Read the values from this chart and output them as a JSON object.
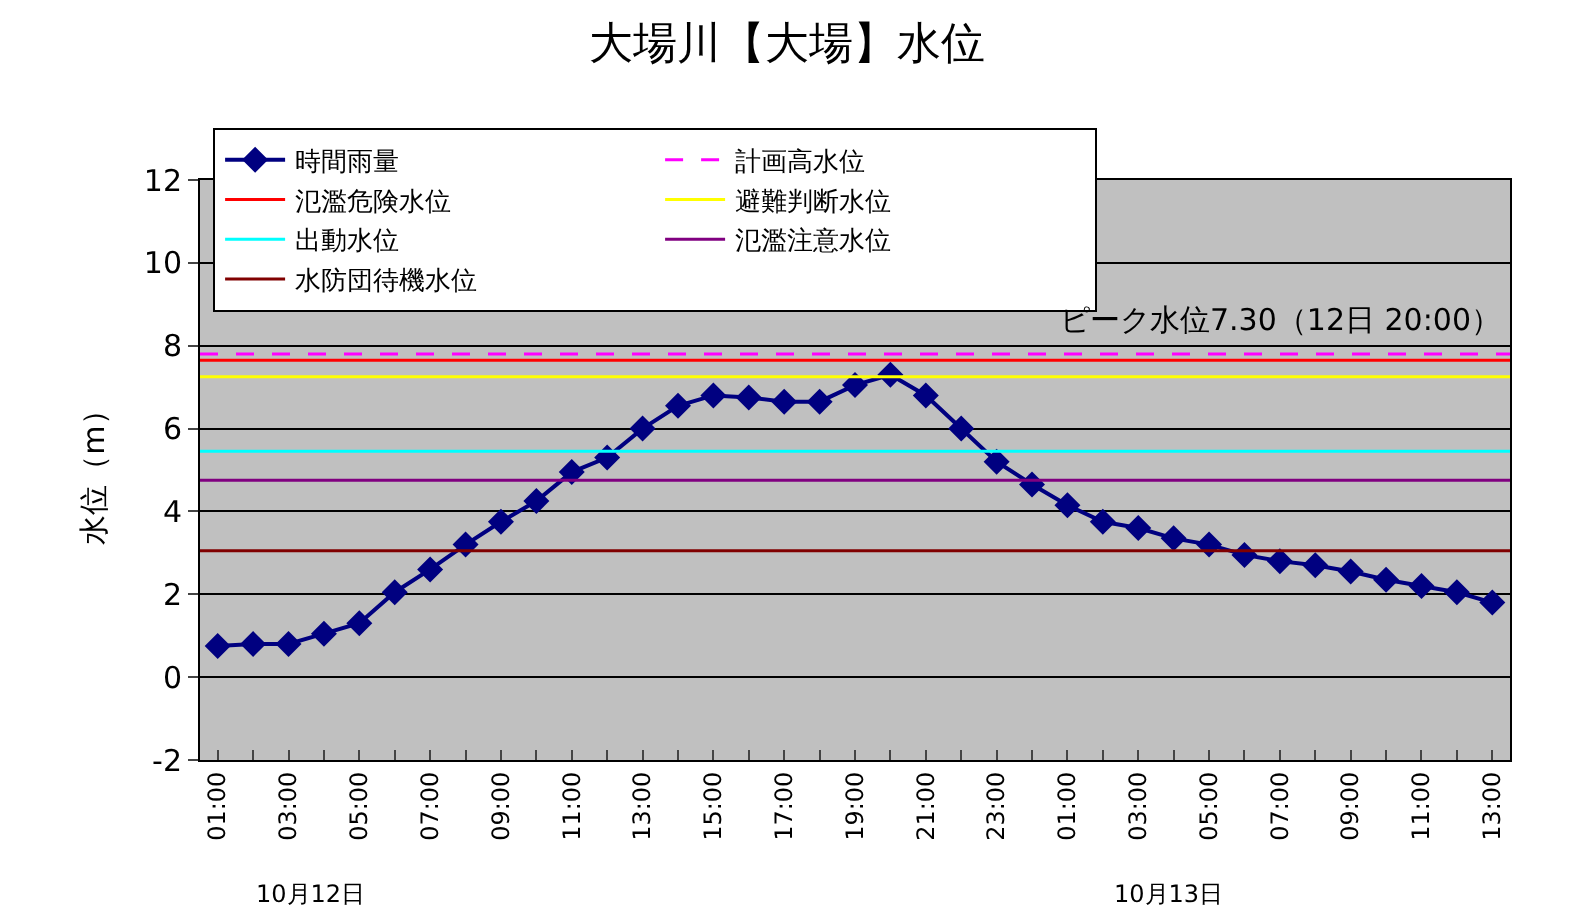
{
  "chart_data": {
    "type": "line",
    "title": "大場川【大場】水位",
    "ylabel": "水位（m）",
    "categories": [
      "01:00",
      null,
      "03:00",
      null,
      "05:00",
      null,
      "07:00",
      null,
      "09:00",
      null,
      "11:00",
      null,
      "13:00",
      null,
      "15:00",
      null,
      "17:00",
      null,
      "19:00",
      null,
      "21:00",
      null,
      "23:00",
      null,
      "01:00",
      null,
      "03:00",
      null,
      "05:00",
      null,
      "07:00",
      null,
      "09:00",
      null,
      "11:00",
      null,
      "13:00"
    ],
    "series": [
      {
        "name": "時間雨量",
        "color": "#000080",
        "values": [
          0.75,
          0.8,
          0.8,
          1.05,
          1.3,
          2.05,
          2.6,
          3.2,
          3.75,
          4.25,
          4.95,
          5.3,
          6.0,
          6.55,
          6.8,
          6.75,
          6.65,
          6.65,
          7.05,
          7.3,
          6.8,
          6.0,
          5.2,
          4.65,
          4.15,
          3.75,
          3.6,
          3.35,
          3.2,
          2.95,
          2.8,
          2.7,
          2.55,
          2.35,
          2.2,
          2.05,
          1.8
        ]
      }
    ],
    "ref_lines": [
      {
        "axis": "y",
        "value": 7.8,
        "label": "計画高水位",
        "color": "#ff00ff",
        "line_style": "dashed"
      },
      {
        "axis": "y",
        "value": 7.65,
        "label": "氾濫危険水位",
        "color": "#ff0000"
      },
      {
        "axis": "y",
        "value": 7.25,
        "label": "避難判断水位",
        "color": "#ffff00"
      },
      {
        "axis": "y",
        "value": 5.45,
        "label": "出動水位",
        "color": "#00ffff"
      },
      {
        "axis": "y",
        "value": 4.75,
        "label": "氾濫注意水位",
        "color": "#800080"
      },
      {
        "axis": "y",
        "value": 3.05,
        "label": "水防団待機水位",
        "color": "#800000"
      }
    ],
    "annotations": [
      "ピーク水位7.30（12日 20:00）",
      "10月12日",
      "10月13日"
    ],
    "ylim": [
      -2,
      12
    ],
    "yticks": [
      -2,
      0,
      2,
      4,
      6,
      8,
      10,
      12
    ],
    "grid": "y",
    "legend": "top left",
    "marker": "diamond",
    "line_style": "solid"
  }
}
